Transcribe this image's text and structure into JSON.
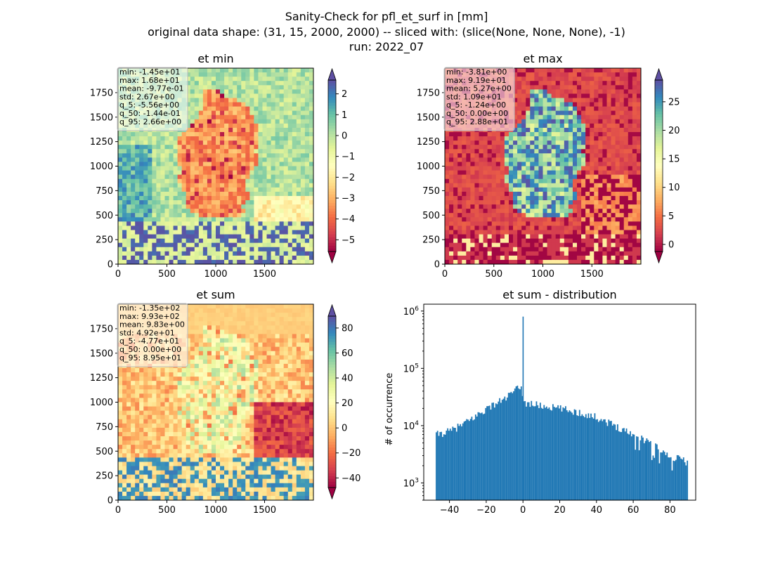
{
  "figure": {
    "title_lines": [
      "Sanity-Check for pfl_et_surf in [mm]",
      "original data shape: (31, 15, 2000, 2000) -- sliced with: (slice(None, None, None), -1)",
      "run: 2022_07"
    ]
  },
  "colormap": [
    "#9e0142",
    "#d53e4f",
    "#f46d43",
    "#fdae61",
    "#fee08b",
    "#ffffbf",
    "#e6f598",
    "#abdda4",
    "#66c2a5",
    "#3288bd",
    "#5e4fa2"
  ],
  "chart_data": [
    {
      "type": "heatmap",
      "title": "et min",
      "x_ticks": [
        "0",
        "500",
        "1000",
        "1500"
      ],
      "y_ticks": [
        "0",
        "250",
        "500",
        "750",
        "1000",
        "1250",
        "1500",
        "1750"
      ],
      "xlim": [
        0,
        2000
      ],
      "ylim": [
        0,
        2000
      ],
      "stats": [
        "min: -1.45e+01",
        "max: 1.68e+01",
        "mean: -9.77e-01",
        "std: 2.67e+00",
        "q_5: -5.56e+00",
        "q_50: -1.44e-01",
        "q_95: 2.66e+00"
      ],
      "colorbar": {
        "vmin": -5.56,
        "vmax": 2.66,
        "zero": 0,
        "ticks": [
          "2",
          "1",
          "0",
          "−1",
          "−2",
          "−3",
          "−4",
          "−5"
        ],
        "tick_values": [
          2,
          1,
          0,
          -1,
          -2,
          -3,
          -4,
          -5
        ]
      }
    },
    {
      "type": "heatmap",
      "title": "et max",
      "x_ticks": [
        "0",
        "500",
        "1000",
        "1500"
      ],
      "y_ticks": [
        "0",
        "250",
        "500",
        "750",
        "1000",
        "1250",
        "1500",
        "1750"
      ],
      "xlim": [
        0,
        2000
      ],
      "ylim": [
        0,
        2000
      ],
      "stats": [
        "min: -3.81e+00",
        "max: 9.19e+01",
        "mean: 5.27e+00",
        "std: 1.09e+01",
        "q_5: -1.24e+00",
        "q_50: 0.00e+00",
        "q_95: 2.88e+01"
      ],
      "colorbar": {
        "vmin": -1.24,
        "vmax": 28.8,
        "zero": 0,
        "ticks": [
          "25",
          "20",
          "15",
          "10",
          "5",
          "0"
        ],
        "tick_values": [
          25,
          20,
          15,
          10,
          5,
          0
        ]
      }
    },
    {
      "type": "heatmap",
      "title": "et sum",
      "x_ticks": [
        "0",
        "500",
        "1000",
        "1500"
      ],
      "y_ticks": [
        "0",
        "250",
        "500",
        "750",
        "1000",
        "1250",
        "1500",
        "1750"
      ],
      "xlim": [
        0,
        2000
      ],
      "ylim": [
        0,
        2000
      ],
      "stats": [
        "min: -1.35e+02",
        "max: 9.93e+02",
        "mean: 9.83e+00",
        "std: 4.92e+01",
        "q_5: -4.77e+01",
        "q_50: 0.00e+00",
        "q_95: 8.95e+01"
      ],
      "colorbar": {
        "vmin": -47.7,
        "vmax": 89.5,
        "zero": 0,
        "ticks": [
          "80",
          "60",
          "40",
          "20",
          "0",
          "−20",
          "−40"
        ],
        "tick_values": [
          80,
          60,
          40,
          20,
          0,
          -20,
          -40
        ]
      }
    },
    {
      "type": "bar",
      "title": "et sum - distribution",
      "ylabel": "# of occurrence",
      "xlim": [
        -54,
        94
      ],
      "yscale": "log",
      "ylim": [
        500,
        1000000
      ],
      "x_ticks": [
        "−40",
        "−20",
        "0",
        "20",
        "40",
        "60",
        "80"
      ],
      "x_tick_values": [
        -40,
        -20,
        0,
        20,
        40,
        60,
        80
      ],
      "bar_color": "#1f77b4",
      "bin_width": 0.69,
      "anchors": [
        [
          -47.5,
          7000
        ],
        [
          -40,
          8000
        ],
        [
          -30,
          12000
        ],
        [
          -20,
          20000
        ],
        [
          -10,
          30000
        ],
        [
          -3,
          45000
        ],
        [
          -1,
          50000
        ],
        [
          0,
          25000
        ],
        [
          5,
          24000
        ],
        [
          10,
          22000
        ],
        [
          20,
          20000
        ],
        [
          30,
          17000
        ],
        [
          40,
          14000
        ],
        [
          50,
          10000
        ],
        [
          60,
          7000
        ],
        [
          70,
          5000
        ],
        [
          80,
          3000
        ],
        [
          89.5,
          2300
        ]
      ],
      "spike": {
        "x": 0,
        "y": 800000
      }
    }
  ]
}
